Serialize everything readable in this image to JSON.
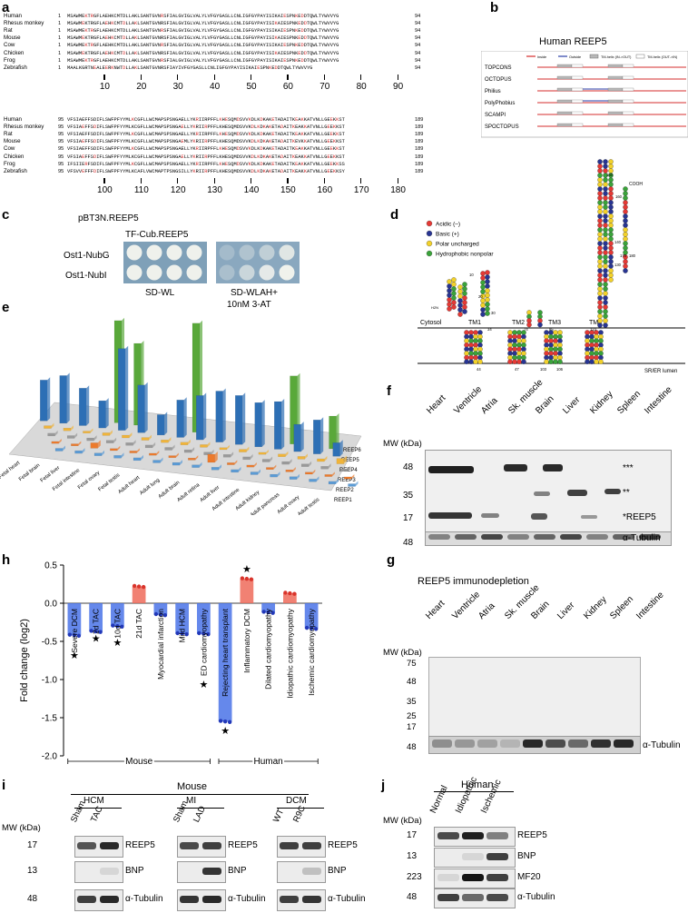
{
  "panel_labels": {
    "a": "a",
    "b": "b",
    "c": "c",
    "d": "d",
    "e": "e",
    "f": "f",
    "g": "g",
    "h": "h",
    "i": "i",
    "j": "j"
  },
  "panel_a": {
    "species": [
      "Human",
      "Rhesus monkey",
      "Rat",
      "Mouse",
      "Cow",
      "Chicken",
      "Frog",
      "Zebrafish"
    ],
    "block1_start": [
      "1",
      "1",
      "1",
      "1",
      "1",
      "1",
      "1",
      "1"
    ],
    "block1_end": [
      "94",
      "94",
      "94",
      "94",
      "94",
      "94",
      "94",
      "94"
    ],
    "block1_seqs": [
      "MSAWMEKTRGFLAEHKCMTDLLAKLSANTGVNRSFIALGVIGLVALYLVFGYGASLLCNLIGFGYPAYISIKAIESPNKEDDTQWLTYWVVYG",
      "MSAWMEKTRGFLAEHKCMTDLLAKLSANTGVNRSFIALGVIGLVALYLVFGYGASLLCNLIGFGYPAYISIKAIESPNKEDDTQWLTYWVVYG",
      "MSAWMEKTRGFLAEHKCMTDLLAKLSANTGVNRSFIALGVIGLVALYLVFGYGASLLCNLIGFGYPAYISIKAIESPNKEDDTQWLTYWVVYG",
      "MSAWMEKTRGFLAEHKCMTDLLAKLSANTGVNRSFIALGVIGLVALYLVFGYGASLLCNLIGFGYPAYISIKAIESPNKEDDTQWLTYWVVYG",
      "MSAWMEKTRGFLAEHKCMTDLLAKLSANTGVNRSFIALGVIGLVALYLVFGYGASLLCNLIGFGYPAYISIKAIESPNKEDDTQWLTYWVVYG",
      "MSAWMEKTRGFLAEHKCMTDLLAKLSANTGVNRSFIALGVIGLVALYLVFGYGASLLCNLIGFGYPAYISIKAIESPNKEDDTQWLTYWVVYG",
      "MSAWMEKTRGFLAEHKCMTDLLAKLSANTGVNRSFIALGVIGLVALYLVFGYGASLLCNLIGFGYPAYISIKAIESPNKEDDTQWLTYWVVYG",
      "MAALKGRTNEALEERKNWTDLLAKLSANTGVNRSFIAYIVFGYGASLLCNLIGFGYPAYISIKAIESPNKEDDTQWLTYWVVYG"
    ],
    "block1_ticks": [
      "10",
      "20",
      "30",
      "40",
      "50",
      "60",
      "70",
      "80",
      "90"
    ],
    "block2_start": [
      "95",
      "95",
      "95",
      "95",
      "95",
      "95",
      "95",
      "95"
    ],
    "block2_end": [
      "189",
      "189",
      "189",
      "189",
      "189",
      "189",
      "189",
      "189"
    ],
    "block2_seqs": [
      "VFSIAEFFSDIFLSWFPFYYMLKCGFLLWCMAPSPSNGAELLYKRIIRPFFLKHESQMDSVVKDLKDKAKETADAITKEAKKATVNLLGEEKKST",
      "VFSIAEFFSDIFLSWFPFYYMLKCGFLLWCMAPSPSNGAELLYKRIIRPFFLKHESQMDSVVKDLKDKAKETADAITKEAKKATVNLLGEEKKST",
      "VFSIAEFFSDIFLSWFPFYYMLKCGFLLWCMAPSPSNGAELLYKRIIRPFFLKHESQMDSVVKDLKDKAKETADAITKEAKKATVNLLGEEKKST",
      "VFSIAEFFSDIFLSWFPFYYMLKCGFLLWCMAPSPSNGAEMLYKRIIRPFFLKHESQMDSVVKDLKDKAKETADAITKEVKKATVNLLGEEKKST",
      "VFSIAEFFSDIFLSWFPFYYMLKCGFLLWCMAPSPSNGAELLYKRIIRPFFLKHESQMDSVVKDLKDKAKETADAITKEAKKATVNLLGEEKKST",
      "VFSIAEFFSDIFLSWFPFYYMLKCGFLLWCMAPSPSNGAELLYKRIIRPFFLKHESQMDSVVKDLKDKAKETADAITKEAKKATVNLLGEEKKST",
      "IFSIIERFSDIFLSWFPFYYMLKCGFLLWCMAPSPSNGAELLYKRIIRPFFLKHESQMDSVVKDLKDKAKETADAITKEAKKATVNLLGEEKKSS",
      "VFSVVEFFFDIFLSWFPFYYMLKCAFLVWCMAPTPSNGSILLYKRIIRPFFLKHESQMDSVVKDLKDKAKETADAITKEAKKATVNLLGEEKKSY"
    ],
    "block2_ticks": [
      "100",
      "110",
      "120",
      "130",
      "140",
      "150",
      "160",
      "170",
      "180"
    ]
  },
  "panel_b": {
    "title": "Human REEP5",
    "legend": [
      "Inside",
      "Outside",
      "TM-helix (IN->OUT)",
      "TM-helix (OUT->IN)"
    ],
    "colors": {
      "inside": "#d62c2c",
      "outside": "#2a3ea8",
      "tm_in_out": "#b8b8b8",
      "tm_out_in": "#ffffff"
    },
    "methods": [
      "TOPCONS",
      "OCTOPUS",
      "Philius",
      "PolyPhobius",
      "SCAMPI",
      "SPOCTOPUS"
    ]
  },
  "panel_c": {
    "title": "pBT3N.REEP5",
    "gradient_label": "TF-Cub.REEP5",
    "rows": [
      "Ost1-NubG",
      "Ost1-NubI"
    ],
    "plate1_label": "SD-WL",
    "plate2_label_line1": "SD-WLAH+",
    "plate2_label_line2": "10nM 3-AT"
  },
  "panel_d": {
    "cytosol": "Cytosol",
    "lumen": "SR/ER lumen",
    "tm_labels": [
      "TM1",
      "TM2",
      "TM3",
      "TM4"
    ],
    "n_term": "H2N",
    "c_term": "COOH",
    "residue_numbers": [
      "10",
      "20",
      "30",
      "34",
      "44",
      "47",
      "74",
      "85",
      "103",
      "106",
      "123",
      "130",
      "140",
      "150",
      "160",
      "170",
      "180"
    ],
    "legend": [
      {
        "label": "Acidic (–)",
        "color": "#e53935"
      },
      {
        "label": "Basic (+)",
        "color": "#283593"
      },
      {
        "label": "Polar uncharged",
        "color": "#f2d12a"
      },
      {
        "label": "Hydrophobic nonpolar",
        "color": "#3aa33a"
      }
    ]
  },
  "panel_e": {
    "tissues": [
      "Fetal heart",
      "Fetal brain",
      "Fetal liver",
      "Fetal intestine",
      "Fetal ovary",
      "Fetal testis",
      "Adult heart",
      "Adult lung",
      "Adult brain",
      "Adult retina",
      "Adult liver",
      "Adult intestine",
      "Adult kidney",
      "Adult pancreas",
      "Adult ovary",
      "Adult testis"
    ],
    "series": [
      "REEP6",
      "REEP5",
      "REEP4",
      "REEP3",
      "REEP2",
      "REEP1"
    ],
    "colors": {
      "REEP6": "#59a83a",
      "REEP5": "#2d6fb5",
      "REEP4": "#f0b43a",
      "REEP3": "#9a9a9a",
      "REEP2": "#ec7a2c",
      "REEP1": "#5b9bd5"
    }
  },
  "panel_f": {
    "lanes": [
      "Heart",
      "Ventricle",
      "Atria",
      "Sk. muscle",
      "Brain",
      "Liver",
      "Kidney",
      "Spleen",
      "Intestine"
    ],
    "mw_title": "MW (kDa)",
    "mw_markers": [
      "48",
      "35",
      "17",
      "48"
    ],
    "band_labels": [
      "***",
      "**",
      "*REEP5",
      "α-Tubulin"
    ]
  },
  "panel_g": {
    "title": "REEP5 immunodepletion",
    "lanes": [
      "Heart",
      "Ventricle",
      "Atria",
      "Sk. muscle",
      "Brain",
      "Liver",
      "Kidney",
      "Spleen",
      "Intestine"
    ],
    "mw_title": "MW (kDa)",
    "mw_markers": [
      "75",
      "48",
      "35",
      "25",
      "17",
      "48"
    ],
    "loading_label": "α-Tubulin"
  },
  "chart_data": {
    "type": "bar",
    "ylabel": "Fold change (log2)",
    "ylim": [
      -2.0,
      0.5
    ],
    "yticks": [
      "0.5",
      "0.0",
      "-0.5",
      "-1.0",
      "-1.5",
      "-2.0"
    ],
    "categories": [
      "Severe DCM",
      "2d TAC",
      "10d TAC",
      "21d TAC",
      "Myocardial infarction",
      "Mild HCM",
      "ED cardiomyopathy",
      "Rejecting heart transplant",
      "Inflammatory DCM",
      "Dilated cardiomyopathy",
      "Idiopathic cardiomyopathy",
      "Ischemic cardiomyopathy"
    ],
    "values": [
      -0.42,
      -0.37,
      -0.3,
      0.22,
      -0.15,
      -0.4,
      -0.4,
      -1.55,
      0.32,
      -0.12,
      0.13,
      -0.33
    ],
    "significant": [
      true,
      true,
      true,
      false,
      false,
      false,
      true,
      true,
      true,
      false,
      false,
      false
    ],
    "groups": [
      {
        "label": "Mouse",
        "from": 0,
        "to": 6
      },
      {
        "label": "Human",
        "from": 7,
        "to": 11
      }
    ],
    "colors": {
      "down": "#4a73e8",
      "up": "#ef6b5b"
    },
    "star": "★"
  },
  "panel_i": {
    "species": "Mouse",
    "mw_title": "MW (kDa)",
    "groups": [
      {
        "name": "HCM",
        "lanes": [
          "Sham",
          "TAC"
        ]
      },
      {
        "name": "MI",
        "lanes": [
          "Sham",
          "LAD"
        ]
      },
      {
        "name": "DCM",
        "lanes": [
          "WT",
          "R9C"
        ]
      }
    ],
    "mw_markers": [
      "17",
      "13",
      "48"
    ],
    "rows": [
      "REEP5",
      "BNP",
      "α-Tubulin"
    ]
  },
  "panel_j": {
    "species": "Human",
    "mw_title": "MW (kDa)",
    "lanes": [
      "Normal",
      "Idiopathic",
      "Ischemic"
    ],
    "mw_markers": [
      "17",
      "13",
      "223",
      "48"
    ],
    "rows": [
      "REEP5",
      "BNP",
      "MF20",
      "α-Tubulin"
    ]
  }
}
